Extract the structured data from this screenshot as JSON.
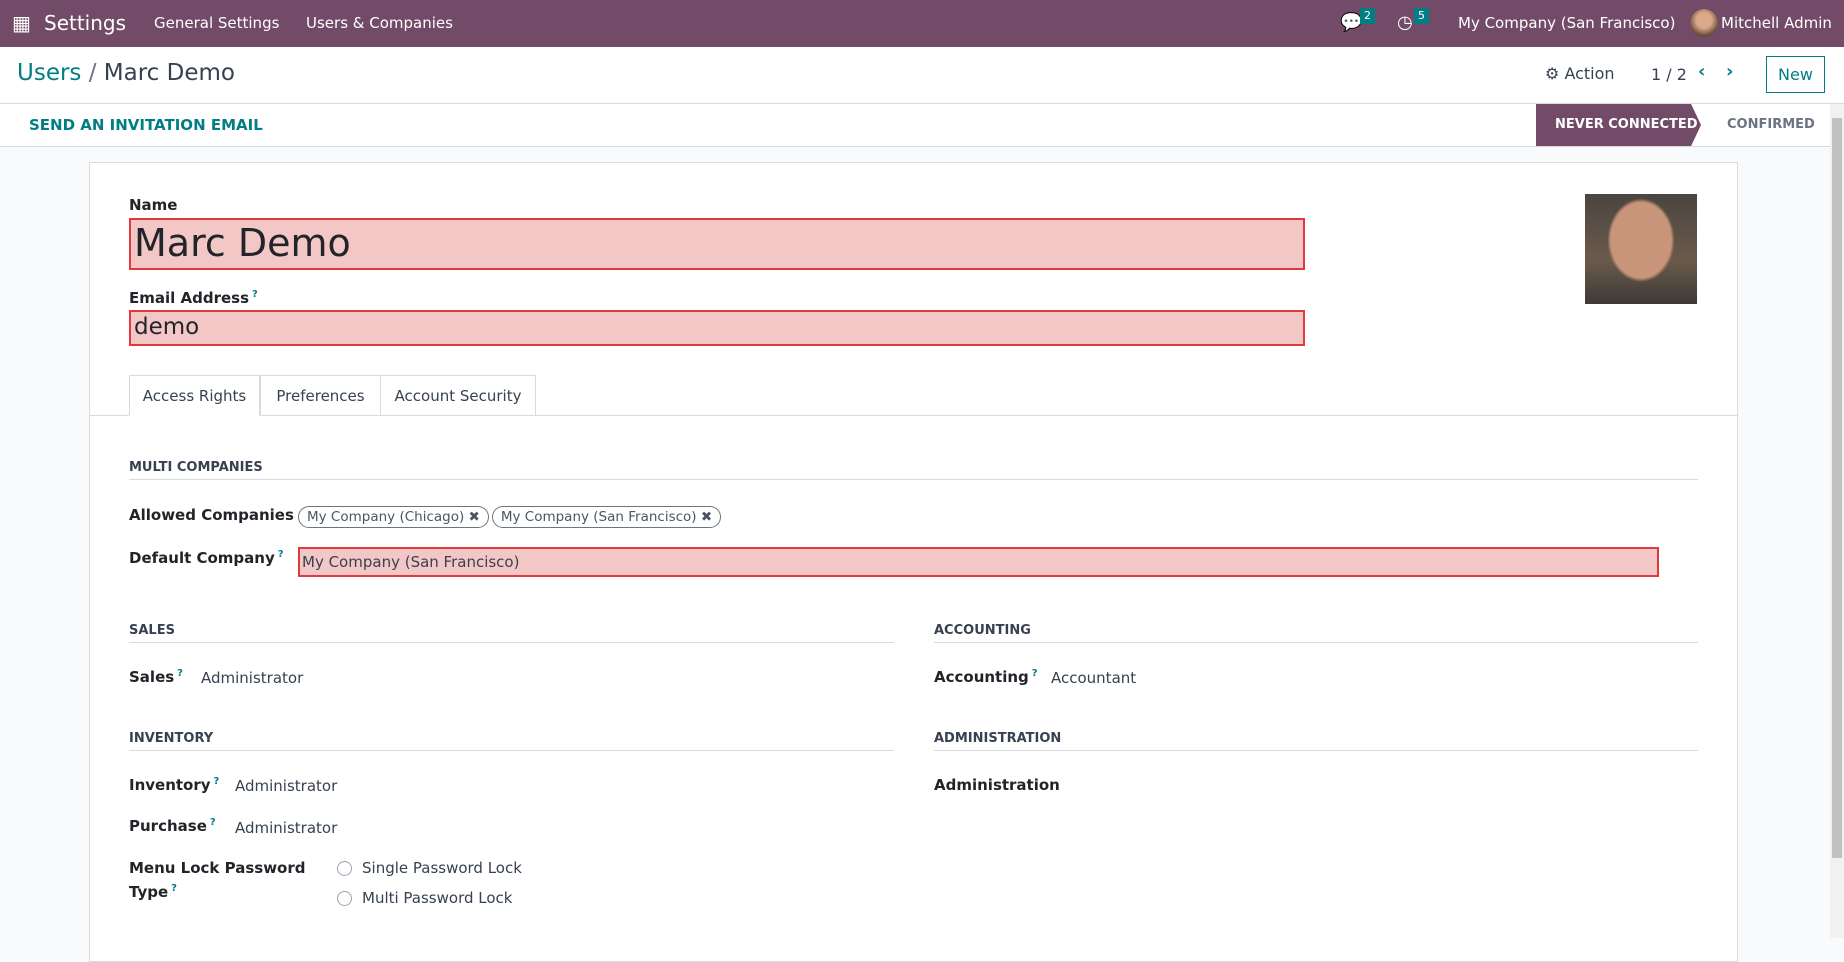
{
  "topbar": {
    "app": "Settings",
    "menu": [
      "General Settings",
      "Users & Companies"
    ],
    "messages_count": "2",
    "activities_count": "5",
    "company": "My Company (San Francisco)",
    "user": "Mitchell Admin"
  },
  "breadcrumb": {
    "parent": "Users",
    "separator": "/",
    "current": "Marc Demo"
  },
  "control": {
    "action": "Action",
    "pager": "1 / 2",
    "new": "New"
  },
  "statusbar": {
    "invite": "SEND AN INVITATION EMAIL",
    "stages": [
      "NEVER CONNECTED",
      "CONFIRMED"
    ],
    "active_stage": "NEVER CONNECTED"
  },
  "form": {
    "name_label": "Name",
    "name_value": "Marc Demo",
    "email_label": "Email Address",
    "email_value": "demo",
    "help": "?",
    "tabs": [
      "Access Rights",
      "Preferences",
      "Account Security"
    ],
    "active_tab": "Access Rights",
    "multi_companies": {
      "title": "MULTI COMPANIES",
      "allowed_label": "Allowed Companies",
      "allowed": [
        "My Company (Chicago)",
        "My Company (San Francisco)"
      ],
      "default_label": "Default Company",
      "default_value": "My Company (San Francisco)"
    },
    "sales": {
      "title": "SALES",
      "label": "Sales",
      "value": "Administrator"
    },
    "accounting": {
      "title": "ACCOUNTING",
      "label": "Accounting",
      "value": "Accountant"
    },
    "inventory": {
      "title": "INVENTORY",
      "inventory_label": "Inventory",
      "inventory_value": "Administrator",
      "purchase_label": "Purchase",
      "purchase_value": "Administrator",
      "menu_lock_label_1": "Menu Lock Password",
      "menu_lock_label_2": "Type",
      "options": [
        "Single Password Lock",
        "Multi Password Lock"
      ]
    },
    "administration": {
      "title": "ADMINISTRATION",
      "label": "Administration"
    }
  },
  "colors": {
    "brand": "#714b67",
    "accent": "#017e84",
    "invalid_bg": "#f4c7c7",
    "invalid_border": "#e0393e"
  }
}
